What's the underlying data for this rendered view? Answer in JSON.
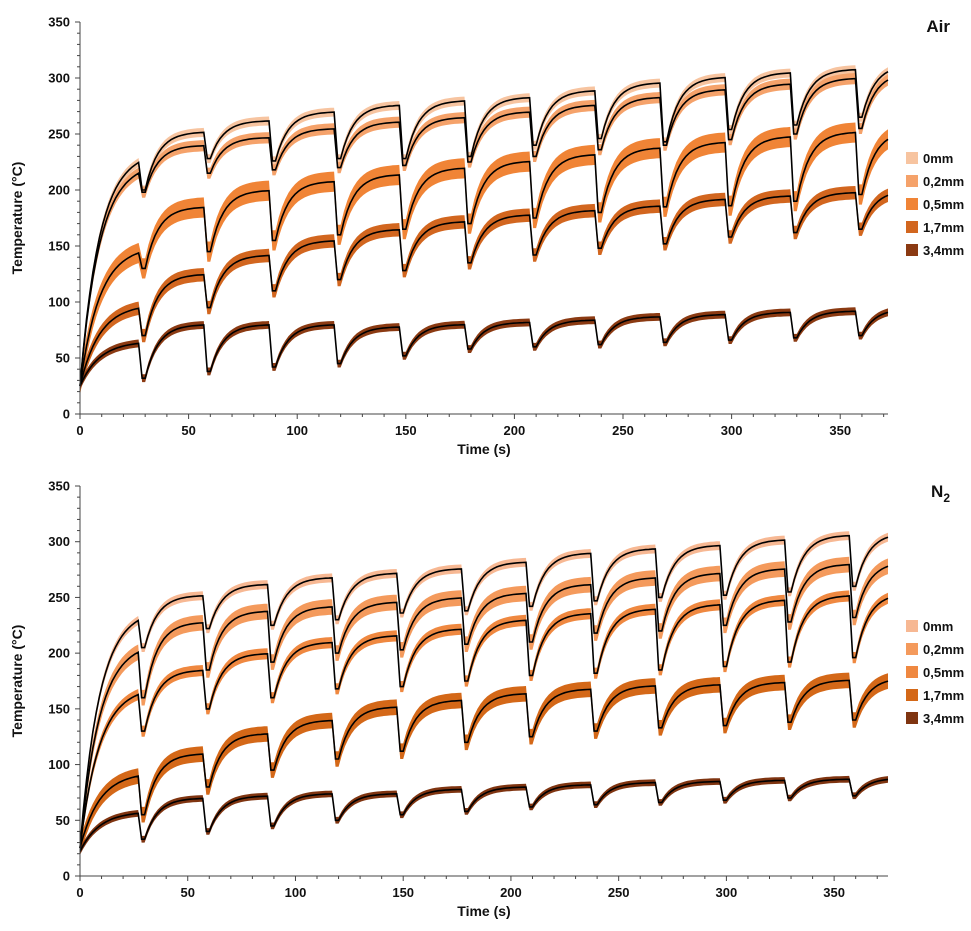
{
  "chart_data": [
    {
      "type": "area",
      "panel_title": "Air",
      "xlabel": "Time (s)",
      "ylabel": "Temperature (°C)",
      "xlim": [
        0,
        372
      ],
      "ylim": [
        0,
        350
      ],
      "xticks": [
        0,
        50,
        100,
        150,
        200,
        250,
        300,
        350
      ],
      "yticks": [
        0,
        50,
        100,
        150,
        200,
        250,
        300,
        350
      ],
      "grid": false,
      "legend_position": "right",
      "band_description": "colored band = min/max spread, black line = mean",
      "series": [
        {
          "name": "0mm",
          "color": "#f7c4a0",
          "init": 25,
          "rise": [
            235,
            252,
            262,
            270,
            276,
            280,
            283,
            289,
            296,
            301,
            305,
            308,
            312
          ],
          "drop": [
            200,
            228,
            226,
            228,
            228,
            230,
            240,
            246,
            243,
            254,
            258,
            265,
            272
          ],
          "band": 8
        },
        {
          "name": "0,2mm",
          "color": "#f5a26a",
          "init": 25,
          "rise": [
            225,
            240,
            247,
            255,
            261,
            265,
            270,
            276,
            283,
            290,
            295,
            300,
            305
          ],
          "drop": [
            198,
            215,
            218,
            220,
            222,
            225,
            230,
            236,
            240,
            245,
            250,
            255,
            258
          ],
          "band": 10
        },
        {
          "name": "0,5mm",
          "color": "#f08436",
          "init": 25,
          "rise": [
            150,
            185,
            200,
            208,
            214,
            220,
            226,
            232,
            238,
            243,
            248,
            252,
            253
          ],
          "drop": [
            130,
            145,
            155,
            160,
            165,
            170,
            175,
            180,
            185,
            186,
            190,
            196,
            200
          ],
          "band": 18
        },
        {
          "name": "1,7mm",
          "color": "#d2661f",
          "init": 25,
          "rise": [
            98,
            125,
            142,
            155,
            165,
            172,
            178,
            182,
            186,
            192,
            195,
            198,
            200
          ],
          "drop": [
            70,
            95,
            110,
            120,
            128,
            135,
            142,
            148,
            152,
            158,
            162,
            165,
            168
          ],
          "band": 12
        },
        {
          "name": "3,4mm",
          "color": "#8b3a12",
          "init": 25,
          "rise": [
            65,
            80,
            80,
            80,
            78,
            80,
            82,
            84,
            87,
            89,
            91,
            92,
            94
          ],
          "drop": [
            32,
            38,
            42,
            45,
            52,
            58,
            60,
            62,
            64,
            66,
            68,
            70,
            72
          ],
          "band": 7
        }
      ]
    },
    {
      "type": "area",
      "panel_title": "N2",
      "xlabel": "Time (s)",
      "ylabel": "Temperature (°C)",
      "xlim": [
        0,
        375
      ],
      "ylim": [
        0,
        350
      ],
      "xticks": [
        0,
        50,
        100,
        150,
        200,
        250,
        300,
        350
      ],
      "yticks": [
        0,
        50,
        100,
        150,
        200,
        250,
        300,
        350
      ],
      "grid": false,
      "legend_position": "right",
      "band_description": "colored band = min/max spread, black line = mean",
      "series": [
        {
          "name": "0mm",
          "color": "#f7b893",
          "init": 25,
          "rise": [
            240,
            252,
            262,
            268,
            272,
            276,
            282,
            290,
            294,
            297,
            302,
            306,
            308
          ],
          "drop": [
            205,
            222,
            225,
            230,
            236,
            238,
            242,
            247,
            250,
            252,
            255,
            260,
            265
          ],
          "band": 8
        },
        {
          "name": "0,2mm",
          "color": "#f49a5c",
          "init": 25,
          "rise": [
            210,
            228,
            238,
            242,
            246,
            250,
            254,
            262,
            268,
            272,
            276,
            280,
            282
          ],
          "drop": [
            160,
            185,
            192,
            200,
            203,
            208,
            210,
            218,
            220,
            225,
            228,
            232,
            235
          ],
          "band": 14
        },
        {
          "name": "0,5mm",
          "color": "#ef8840",
          "init": 25,
          "rise": [
            170,
            185,
            200,
            210,
            216,
            222,
            230,
            236,
            240,
            244,
            248,
            252,
            254
          ],
          "drop": [
            130,
            150,
            160,
            168,
            170,
            175,
            180,
            182,
            185,
            188,
            192,
            196,
            198
          ],
          "band": 10
        },
        {
          "name": "1,7mm",
          "color": "#d46818",
          "init": 25,
          "rise": [
            93,
            110,
            128,
            140,
            152,
            158,
            164,
            168,
            171,
            172,
            174,
            176,
            178
          ],
          "drop": [
            55,
            80,
            95,
            105,
            112,
            120,
            125,
            130,
            133,
            135,
            138,
            140,
            142
          ],
          "band": 14
        },
        {
          "name": "3,4mm",
          "color": "#7f3410",
          "init": 22,
          "rise": [
            58,
            70,
            72,
            74,
            74,
            78,
            80,
            82,
            84,
            85,
            86,
            87,
            88
          ],
          "drop": [
            33,
            40,
            45,
            50,
            55,
            58,
            62,
            64,
            66,
            68,
            70,
            72,
            72
          ],
          "band": 6
        }
      ]
    }
  ]
}
